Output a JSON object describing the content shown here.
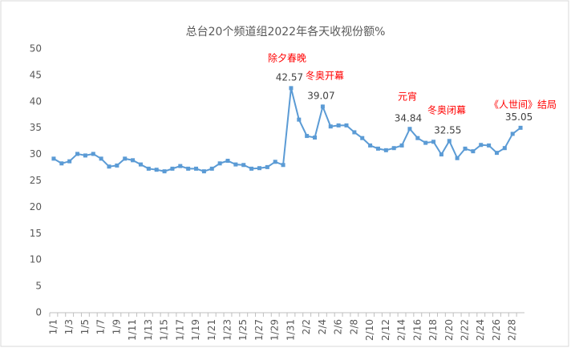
{
  "chart_data": {
    "type": "line",
    "title": "总台20个频道组2022年各天收视份额%",
    "categories": [
      "1/1",
      null,
      "1/3",
      null,
      "1/5",
      null,
      "1/7",
      null,
      "1/9",
      null,
      "1/11",
      null,
      "1/13",
      null,
      "1/15",
      null,
      "1/17",
      null,
      "1/19",
      null,
      "1/21",
      null,
      "1/23",
      null,
      "1/25",
      null,
      "1/27",
      null,
      "1/29",
      null,
      "1/31",
      null,
      "2/2",
      null,
      "2/4",
      null,
      "2/6",
      null,
      "2/8",
      null,
      "2/10",
      null,
      "2/12",
      null,
      "2/14",
      null,
      "2/16",
      null,
      "2/18",
      null,
      "2/20",
      null,
      "2/22",
      null,
      "2/24",
      null,
      "2/26",
      null,
      "2/28",
      null
    ],
    "series": [
      {
        "color": "#5b9bd5",
        "values": [
          29.2,
          28.3,
          28.7,
          30.1,
          29.8,
          30.1,
          29.2,
          27.7,
          27.9,
          29.2,
          28.9,
          28.1,
          27.3,
          27.1,
          26.8,
          27.3,
          27.8,
          27.3,
          27.3,
          26.8,
          27.3,
          28.3,
          28.8,
          28.1,
          28.0,
          27.3,
          27.4,
          27.6,
          28.6,
          28.0,
          42.57,
          36.6,
          33.5,
          33.2,
          39.07,
          35.3,
          35.5,
          35.5,
          34.2,
          33.1,
          31.7,
          31.1,
          30.8,
          31.2,
          31.7,
          34.84,
          33.1,
          32.2,
          32.4,
          30.0,
          32.55,
          29.3,
          31.1,
          30.6,
          31.8,
          31.7,
          30.3,
          31.2,
          33.9,
          35.05
        ]
      }
    ],
    "annotations": [
      "除夕春晚",
      "冬奥开幕",
      "元宵",
      "冬奥闭幕",
      "《人世间》结局"
    ],
    "ylim": [
      0,
      50
    ],
    "yticks": [
      0,
      5,
      10,
      15,
      20,
      25,
      30,
      35,
      40,
      45,
      50
    ],
    "grid": false
  }
}
